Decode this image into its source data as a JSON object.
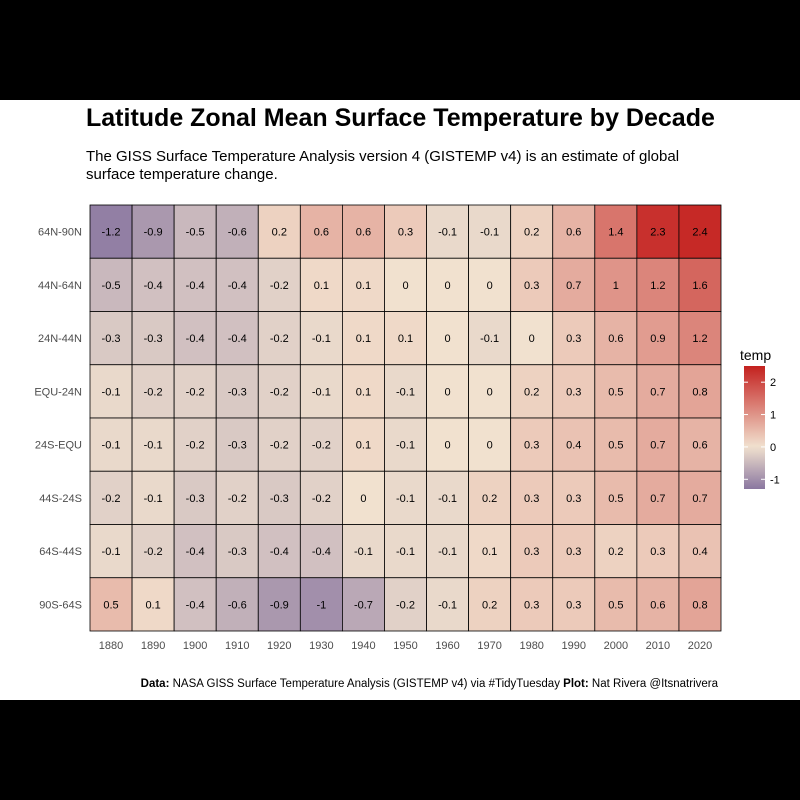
{
  "chart_data": {
    "type": "heatmap",
    "title": "Latitude Zonal Mean Surface Temperature by Decade",
    "subtitle": "The GISS Surface Temperature Analysis version 4 (GISTEMP v4) is an estimate of global surface temperature change.",
    "x_categories": [
      "1880",
      "1890",
      "1900",
      "1910",
      "1920",
      "1930",
      "1940",
      "1950",
      "1960",
      "1970",
      "1980",
      "1990",
      "2000",
      "2010",
      "2020"
    ],
    "y_categories": [
      "64N-90N",
      "44N-64N",
      "24N-44N",
      "EQU-24N",
      "24S-EQU",
      "44S-24S",
      "64S-44S",
      "90S-64S"
    ],
    "values": [
      [
        -1.2,
        -0.9,
        -0.5,
        -0.6,
        0.2,
        0.6,
        0.6,
        0.3,
        -0.1,
        -0.1,
        0.2,
        0.6,
        1.4,
        2.3,
        2.4
      ],
      [
        -0.5,
        -0.4,
        -0.4,
        -0.4,
        -0.2,
        0.1,
        0.1,
        0,
        0,
        0,
        0.3,
        0.7,
        1,
        1.2,
        1.6
      ],
      [
        -0.3,
        -0.3,
        -0.4,
        -0.4,
        -0.2,
        -0.1,
        0.1,
        0.1,
        0,
        -0.1,
        0,
        0.3,
        0.6,
        0.9,
        1.2
      ],
      [
        -0.1,
        -0.2,
        -0.2,
        -0.3,
        -0.2,
        -0.1,
        0.1,
        -0.1,
        0,
        0,
        0.2,
        0.3,
        0.5,
        0.7,
        0.8
      ],
      [
        -0.1,
        -0.1,
        -0.2,
        -0.3,
        -0.2,
        -0.2,
        0.1,
        -0.1,
        0,
        0,
        0.3,
        0.4,
        0.5,
        0.7,
        0.6
      ],
      [
        -0.2,
        -0.1,
        -0.3,
        -0.2,
        -0.3,
        -0.2,
        0,
        -0.1,
        -0.1,
        0.2,
        0.3,
        0.3,
        0.5,
        0.7,
        0.7
      ],
      [
        -0.1,
        -0.2,
        -0.4,
        -0.3,
        -0.4,
        -0.4,
        -0.1,
        -0.1,
        -0.1,
        0.1,
        0.3,
        0.3,
        0.2,
        0.3,
        0.4
      ],
      [
        0.5,
        0.1,
        -0.4,
        -0.6,
        -0.9,
        -1,
        -0.7,
        -0.2,
        -0.1,
        0.2,
        0.3,
        0.3,
        0.5,
        0.6,
        0.8
      ]
    ],
    "legend": {
      "title": "temp",
      "position": "right",
      "ticks": [
        2,
        1,
        0,
        -1
      ],
      "range": [
        -1.3,
        2.5
      ]
    },
    "colors": {
      "low": "#8a77a0",
      "mid": "#f1e1cf",
      "high": "#c4211f"
    },
    "grid": false
  },
  "caption": {
    "data_label": "Data:",
    "data_text": "NASA GISS Surface Temperature Analysis (GISTEMP v4) via #TidyTuesday",
    "plot_label": "Plot:",
    "plot_text": "Nat Rivera @Itsnatrivera"
  }
}
